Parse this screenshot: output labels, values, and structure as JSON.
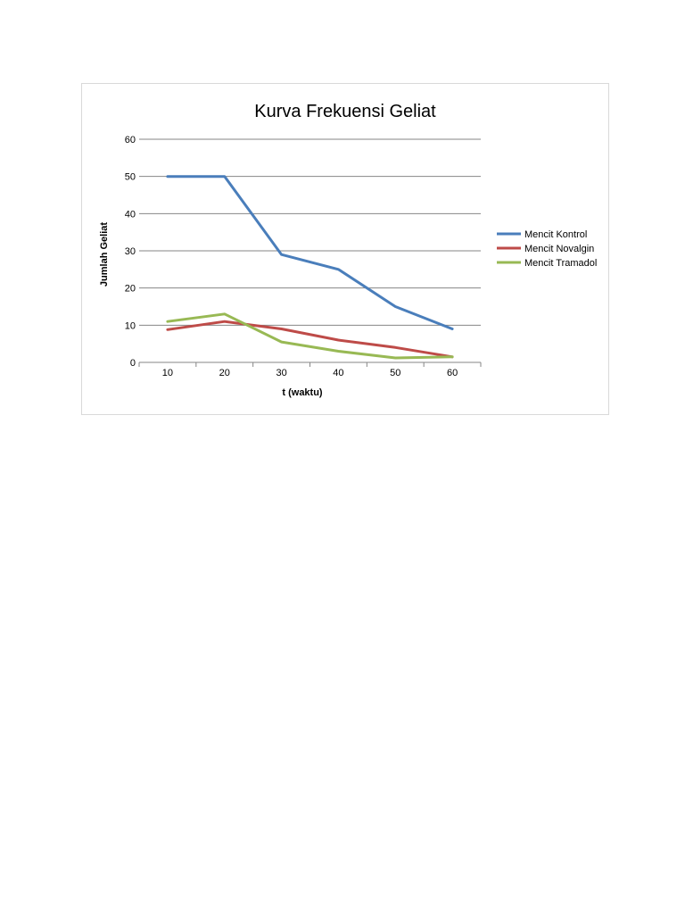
{
  "chart_data": {
    "type": "line",
    "title": "Kurva Frekuensi Geliat",
    "xlabel": "t (waktu)",
    "ylabel": "Jumlah Geliat",
    "categories": [
      "10",
      "20",
      "30",
      "40",
      "50",
      "60"
    ],
    "y_ticks": [
      "0",
      "10",
      "20",
      "30",
      "40",
      "50",
      "60"
    ],
    "ylim": [
      0,
      60
    ],
    "grid": true,
    "legend_position": "right",
    "series": [
      {
        "name": "Mencit Kontrol",
        "color": "#4a7ebb",
        "values": [
          50,
          50,
          29,
          25,
          15,
          9
        ]
      },
      {
        "name": "Mencit Novalgin",
        "color": "#be4b48",
        "values": [
          8.8,
          11,
          9,
          6,
          4,
          1.5
        ]
      },
      {
        "name": "Mencit Tramadol",
        "color": "#98b954",
        "values": [
          11,
          13,
          5.5,
          3,
          1.2,
          1.5
        ]
      }
    ]
  }
}
